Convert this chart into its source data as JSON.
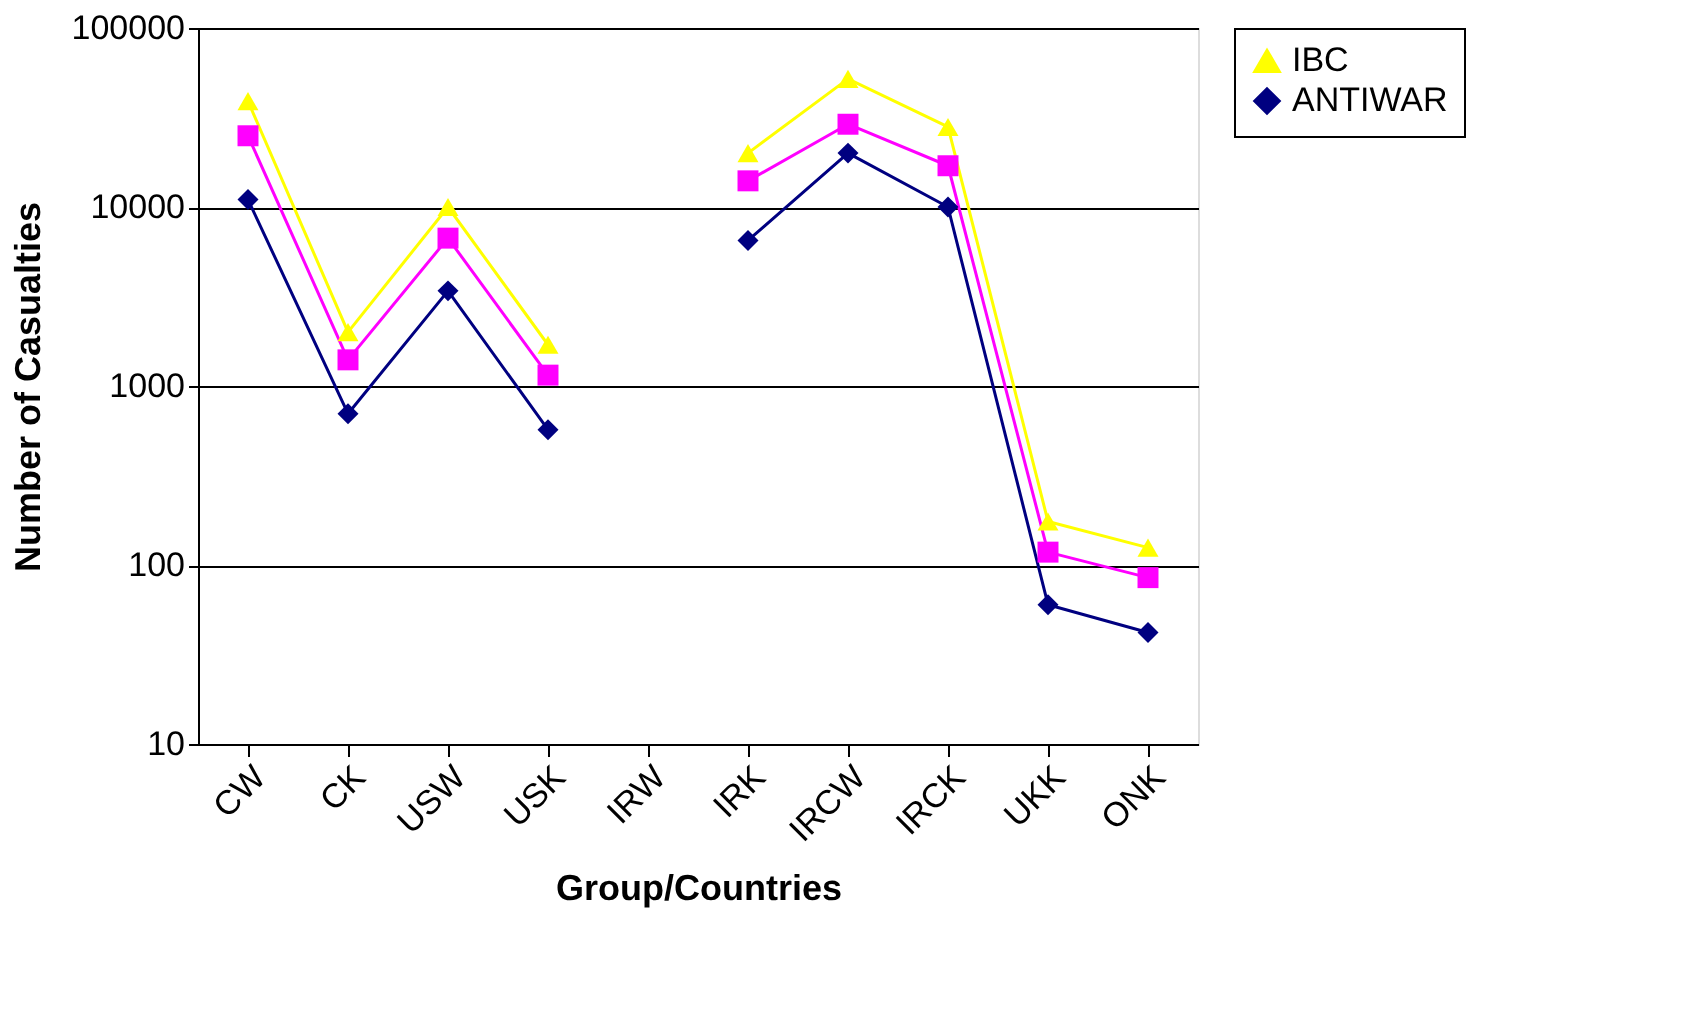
{
  "chart_data": {
    "type": "line",
    "xlabel": "Group/Countries",
    "ylabel": "Number of Casualties",
    "categories": [
      "CW",
      "CK",
      "USW",
      "USK",
      "IRW",
      "IRK",
      "IRCW",
      "IRCK",
      "UKK",
      "ONK"
    ],
    "series": [
      {
        "name": "IBC",
        "color": "#ffff00",
        "marker": "triangle",
        "values": [
          39000,
          2000,
          10000,
          1700,
          null,
          20000,
          52000,
          28000,
          175,
          125
        ]
      },
      {
        "color": "#ff00ff",
        "marker": "square",
        "values": [
          25000,
          1400,
          6700,
          1150,
          null,
          14000,
          29000,
          17000,
          118,
          85
        ]
      },
      {
        "name": "ANTIWAR",
        "color": "#000080",
        "marker": "diamond",
        "values": [
          11000,
          700,
          3400,
          570,
          null,
          6500,
          20000,
          10000,
          60,
          42
        ]
      }
    ],
    "log": "y",
    "ylim": [
      10,
      100000
    ],
    "yticks": [
      10,
      100,
      1000,
      10000,
      100000
    ],
    "grid": "y",
    "legend": "right"
  }
}
